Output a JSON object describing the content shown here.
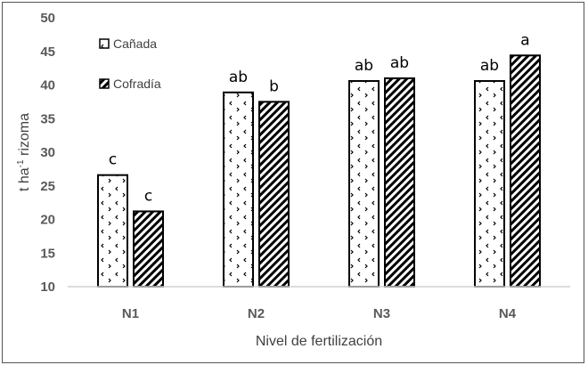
{
  "chart_data": {
    "type": "bar",
    "title": "",
    "xlabel": "Nivel de fertilización",
    "ylabel": "t ha⁻¹ rizoma",
    "ylim": [
      10,
      50
    ],
    "yticks": [
      10,
      15,
      20,
      25,
      30,
      35,
      40,
      45,
      50
    ],
    "grid": false,
    "legend_position": "upper-left-inside",
    "categories": [
      "N1",
      "N2",
      "N3",
      "N4"
    ],
    "series": [
      {
        "name": "Cañada",
        "pattern": "dotted-chevrons",
        "values": [
          26.6,
          38.9,
          40.6,
          40.6
        ],
        "letters": [
          "c",
          "ab",
          "ab",
          "ab"
        ]
      },
      {
        "name": "Cofradía",
        "pattern": "diagonal-hatch",
        "values": [
          21.2,
          37.5,
          41.0,
          44.4
        ],
        "letters": [
          "c",
          "b",
          "ab",
          "a"
        ]
      }
    ]
  },
  "axis": {
    "x_label": "Nivel de fertilización",
    "y_label_main": "t ha",
    "y_label_sup": "-1",
    "y_label_rest": " rizoma"
  },
  "legend": [
    {
      "label": "Cañada"
    },
    {
      "label": "Cofradía"
    }
  ]
}
